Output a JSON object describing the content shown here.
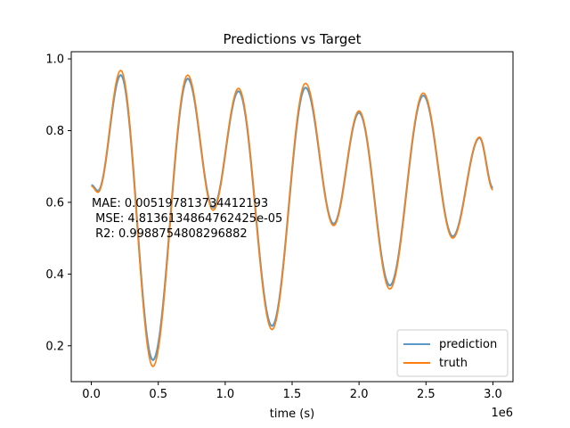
{
  "chart_data": {
    "type": "line",
    "title": "Predictions vs Target",
    "xlabel": "time (s)",
    "ylabel": "",
    "x_offset_text": "1e6",
    "xlim": [
      -0.15,
      3.15
    ],
    "ylim": [
      0.1,
      1.02
    ],
    "x_ticks": [
      0,
      0.5,
      1.0,
      1.5,
      2.0,
      2.5,
      3.0
    ],
    "x_tick_labels": [
      "0.0",
      "0.5",
      "1.0",
      "1.5",
      "2.0",
      "2.5",
      "3.0"
    ],
    "y_ticks": [
      0.2,
      0.4,
      0.6,
      0.8,
      1.0
    ],
    "y_tick_labels": [
      "0.2",
      "0.4",
      "0.6",
      "0.8",
      "1.0"
    ],
    "annotation": [
      "MAE: 0.005197813734412193",
      " MSE: 4.8136134864762425e-05",
      " R2: 0.9988754808296882"
    ],
    "legend_position": "lower-right",
    "series": [
      {
        "name": "prediction",
        "color": "#5b9ac6",
        "x": [
          0.0,
          0.05,
          0.22,
          0.46,
          0.72,
          0.91,
          1.1,
          1.35,
          1.6,
          1.81,
          2.0,
          2.23,
          2.48,
          2.7,
          2.9,
          3.0
        ],
        "y": [
          0.648,
          0.632,
          0.955,
          0.16,
          0.945,
          0.585,
          0.91,
          0.255,
          0.92,
          0.54,
          0.85,
          0.368,
          0.898,
          0.505,
          0.78,
          0.64
        ]
      },
      {
        "name": "truth",
        "color": "#ff7f0e",
        "x": [
          0.0,
          0.05,
          0.22,
          0.46,
          0.72,
          0.91,
          1.1,
          1.35,
          1.6,
          1.81,
          2.0,
          2.23,
          2.48,
          2.7,
          2.9,
          3.0
        ],
        "y": [
          0.645,
          0.628,
          0.968,
          0.142,
          0.955,
          0.578,
          0.918,
          0.245,
          0.932,
          0.535,
          0.855,
          0.358,
          0.905,
          0.5,
          0.782,
          0.635
        ]
      }
    ]
  }
}
